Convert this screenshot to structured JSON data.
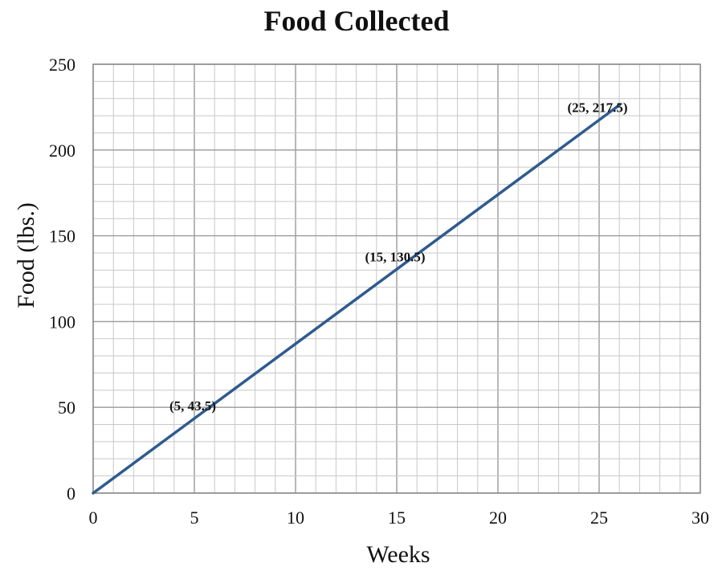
{
  "chart_data": {
    "type": "line",
    "title": "Food Collected",
    "xlabel": "Weeks",
    "ylabel": "Food (lbs.)",
    "xlim": [
      0,
      30
    ],
    "ylim": [
      0,
      250
    ],
    "x_ticks": [
      0,
      5,
      10,
      15,
      20,
      25,
      30
    ],
    "y_ticks": [
      0,
      50,
      100,
      150,
      200,
      250
    ],
    "x_tick_labels": [
      "0",
      "5",
      "10",
      "15",
      "20",
      "25",
      "30"
    ],
    "y_tick_labels": [
      "0",
      "50",
      "100",
      "150",
      "200",
      "250"
    ],
    "grid": true,
    "minor_grid": true,
    "series": [
      {
        "color": "#2F5B8E",
        "x": [
          0,
          26
        ],
        "y": [
          0,
          226.2
        ]
      }
    ],
    "annotations": [
      {
        "text": "(5, 43.5)",
        "x": 5,
        "y": 43.5
      },
      {
        "text": "(15, 130.5)",
        "x": 15,
        "y": 130.5
      },
      {
        "text": "(25, 217.5)",
        "x": 25,
        "y": 217.5
      }
    ],
    "colors": {
      "major_grid": "#9a9a9a",
      "minor_grid": "#c8c8c8",
      "axis": "#888888"
    }
  }
}
